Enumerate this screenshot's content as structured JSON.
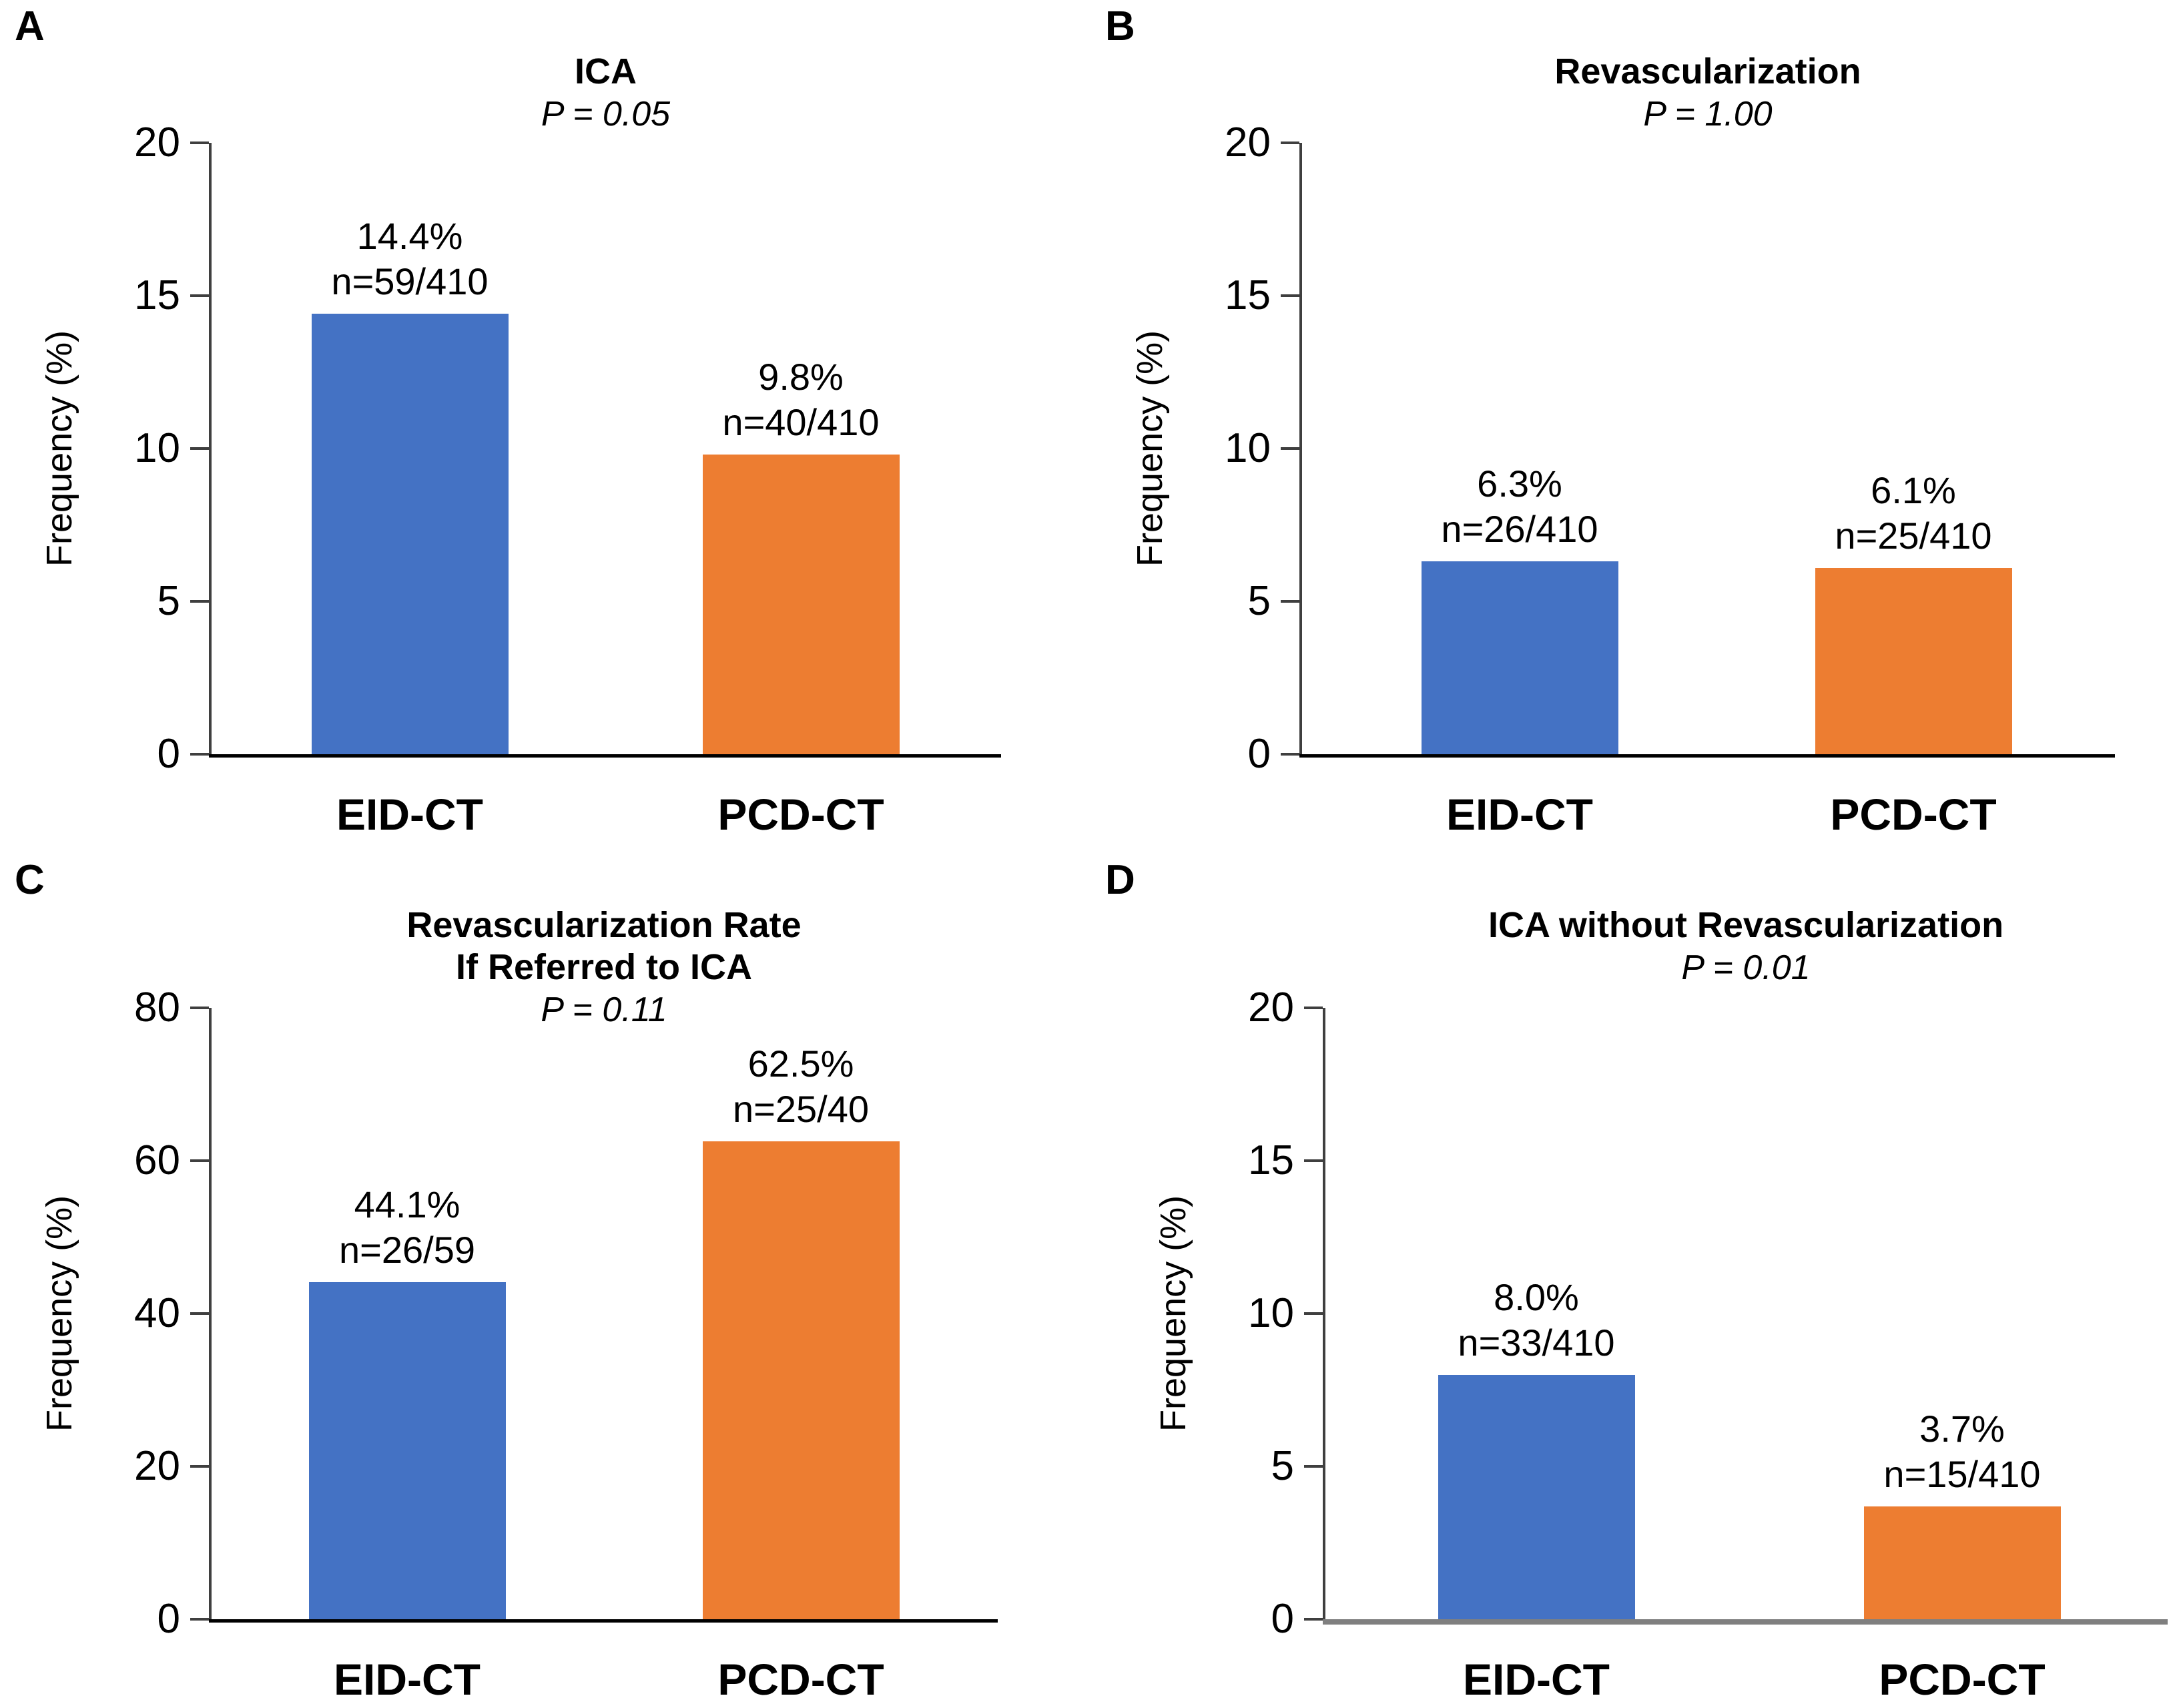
{
  "figure": {
    "background": "#ffffff",
    "layout": "2x2-panel-bar-figure",
    "series_colors": {
      "eid_ct_blue": "#4472C4",
      "pcd_ct_orange": "#ED7D31"
    }
  },
  "chart_data": [
    {
      "type": "bar",
      "panel_letter": "A",
      "title_lines": [
        "ICA"
      ],
      "p_label": "P = 0.05",
      "ylabel": "Frequency (%)",
      "ylim": [
        0,
        20
      ],
      "yticks": [
        20,
        15,
        10,
        5,
        0
      ],
      "categories": [
        "EID-CT",
        "PCD-CT"
      ],
      "grid": false,
      "legend": null,
      "baseline_color": "#000000",
      "bars": [
        {
          "category": "EID-CT",
          "value": 14.4,
          "pct_label": "14.4%",
          "n_label": "n=59/410",
          "color": "#4472C4"
        },
        {
          "category": "PCD-CT",
          "value": 9.8,
          "pct_label": "9.8%",
          "n_label": "n=40/410",
          "color": "#ED7D31"
        }
      ]
    },
    {
      "type": "bar",
      "panel_letter": "B",
      "title_lines": [
        "Revascularization"
      ],
      "p_label": "P = 1.00",
      "ylabel": "Frequency (%)",
      "ylim": [
        0,
        20
      ],
      "yticks": [
        20,
        15,
        10,
        5,
        0
      ],
      "categories": [
        "EID-CT",
        "PCD-CT"
      ],
      "grid": false,
      "legend": null,
      "baseline_color": "#000000",
      "bars": [
        {
          "category": "EID-CT",
          "value": 6.3,
          "pct_label": "6.3%",
          "n_label": "n=26/410",
          "color": "#4472C4"
        },
        {
          "category": "PCD-CT",
          "value": 6.1,
          "pct_label": "6.1%",
          "n_label": "n=25/410",
          "color": "#ED7D31"
        }
      ]
    },
    {
      "type": "bar",
      "panel_letter": "C",
      "title_lines": [
        "Revascularization Rate",
        "If Referred to ICA"
      ],
      "p_label": "P = 0.11",
      "ylabel": "Frequency (%)",
      "ylim": [
        0,
        80
      ],
      "yticks": [
        80,
        60,
        40,
        20,
        0
      ],
      "categories": [
        "EID-CT",
        "PCD-CT"
      ],
      "grid": false,
      "legend": null,
      "baseline_color": "#000000",
      "bars": [
        {
          "category": "EID-CT",
          "value": 44.1,
          "pct_label": "44.1%",
          "n_label": "n=26/59",
          "color": "#4472C4"
        },
        {
          "category": "PCD-CT",
          "value": 62.5,
          "pct_label": "62.5%",
          "n_label": "n=25/40",
          "color": "#ED7D31"
        }
      ]
    },
    {
      "type": "bar",
      "panel_letter": "D",
      "title_lines": [
        "ICA without Revascularization"
      ],
      "p_label": "P = 0.01",
      "ylabel": "Frequency (%)",
      "ylim": [
        0,
        20
      ],
      "yticks": [
        20,
        15,
        10,
        5,
        0
      ],
      "categories": [
        "EID-CT",
        "PCD-CT"
      ],
      "grid": false,
      "legend": null,
      "baseline_color": "#7f7f7f",
      "bars": [
        {
          "category": "EID-CT",
          "value": 8.0,
          "pct_label": "8.0%",
          "n_label": "n=33/410",
          "color": "#4472C4"
        },
        {
          "category": "PCD-CT",
          "value": 3.7,
          "pct_label": "3.7%",
          "n_label": "n=15/410",
          "color": "#ED7D31"
        }
      ]
    }
  ]
}
